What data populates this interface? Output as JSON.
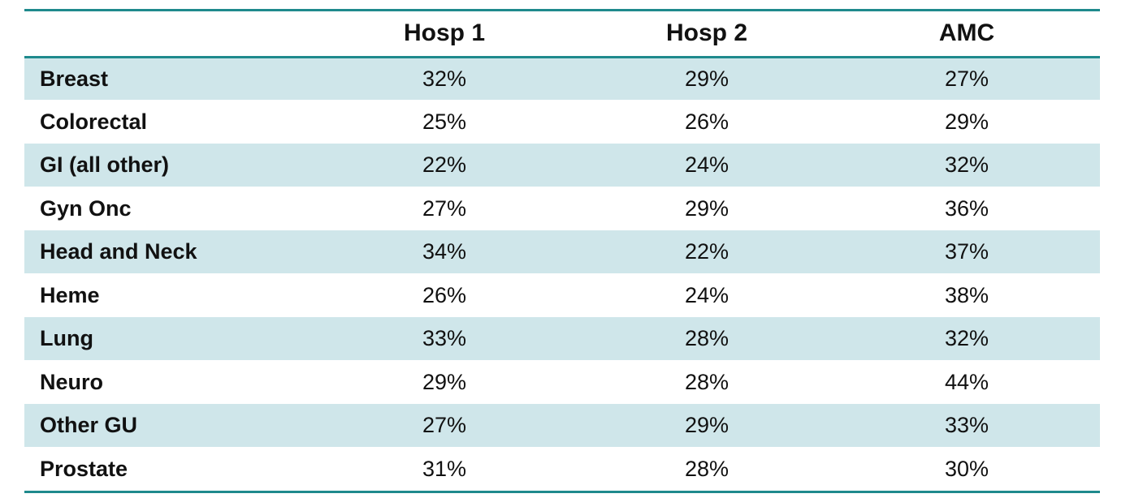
{
  "table": {
    "columns": [
      "",
      "Hosp 1",
      "Hosp 2",
      "AMC"
    ],
    "rows": [
      {
        "label": "Breast",
        "hosp1": "32%",
        "hosp2": "29%",
        "amc": "27%"
      },
      {
        "label": "Colorectal",
        "hosp1": "25%",
        "hosp2": "26%",
        "amc": "29%"
      },
      {
        "label": "GI (all other)",
        "hosp1": "22%",
        "hosp2": "24%",
        "amc": "32%"
      },
      {
        "label": "Gyn Onc",
        "hosp1": "27%",
        "hosp2": "29%",
        "amc": "36%"
      },
      {
        "label": "Head and Neck",
        "hosp1": "34%",
        "hosp2": "22%",
        "amc": "37%"
      },
      {
        "label": "Heme",
        "hosp1": "26%",
        "hosp2": "24%",
        "amc": "38%"
      },
      {
        "label": "Lung",
        "hosp1": "33%",
        "hosp2": "28%",
        "amc": "32%"
      },
      {
        "label": "Neuro",
        "hosp1": "29%",
        "hosp2": "28%",
        "amc": "44%"
      },
      {
        "label": "Other GU",
        "hosp1": "27%",
        "hosp2": "29%",
        "amc": "33%"
      },
      {
        "label": "Prostate",
        "hosp1": "31%",
        "hosp2": "28%",
        "amc": "30%"
      }
    ]
  },
  "colors": {
    "rule": "#1f8a8d",
    "shade": "#cfe6ea"
  }
}
